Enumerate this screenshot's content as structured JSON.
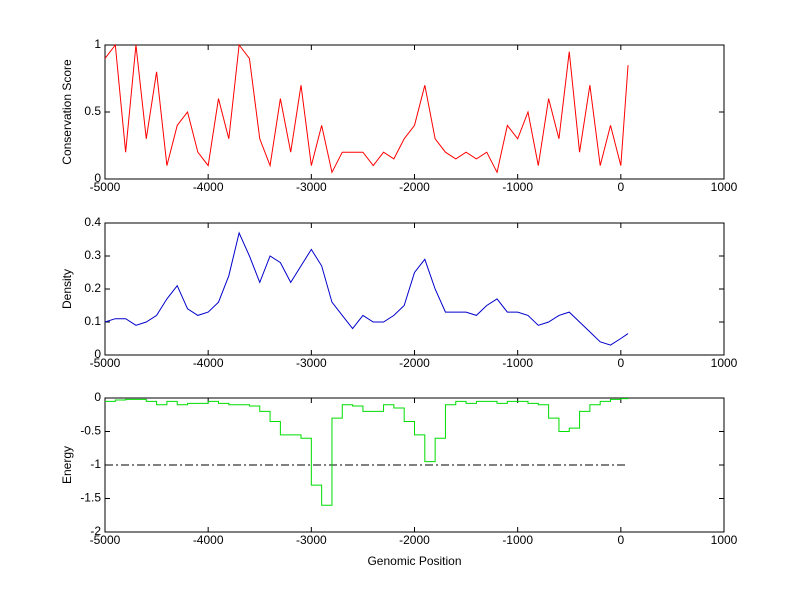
{
  "chart_data": [
    {
      "type": "line",
      "ylabel": "Conservation Score",
      "x": [
        -5000,
        -4900,
        -4800,
        -4700,
        -4600,
        -4500,
        -4400,
        -4300,
        -4200,
        -4100,
        -4000,
        -3900,
        -3800,
        -3700,
        -3600,
        -3500,
        -3400,
        -3300,
        -3200,
        -3100,
        -3000,
        -2900,
        -2800,
        -2700,
        -2600,
        -2500,
        -2400,
        -2300,
        -2200,
        -2100,
        -2000,
        -1900,
        -1800,
        -1700,
        -1600,
        -1500,
        -1400,
        -1300,
        -1200,
        -1100,
        -1000,
        -900,
        -800,
        -700,
        -600,
        -500,
        -400,
        -300,
        -200,
        -100,
        0,
        70
      ],
      "series": [
        {
          "color": "#ff0000",
          "values": [
            0.9,
            1,
            0.2,
            1,
            0.3,
            0.8,
            0.1,
            0.4,
            0.5,
            0.2,
            0.1,
            0.6,
            0.3,
            1,
            0.9,
            0.3,
            0.1,
            0.6,
            0.2,
            0.7,
            0.1,
            0.4,
            0.05,
            0.2,
            0.2,
            0.2,
            0.1,
            0.2,
            0.15,
            0.3,
            0.4,
            0.7,
            0.3,
            0.2,
            0.15,
            0.2,
            0.15,
            0.2,
            0.05,
            0.4,
            0.3,
            0.5,
            0.1,
            0.6,
            0.3,
            0.95,
            0.2,
            0.7,
            0.1,
            0.4,
            0.1,
            0.85
          ]
        }
      ],
      "xlim": [
        -5000,
        1000
      ],
      "xticks": [
        -5000,
        -4000,
        -3000,
        -2000,
        -1000,
        0,
        1000
      ],
      "ylim": [
        0,
        1
      ],
      "yticks": [
        0,
        0.5,
        1
      ]
    },
    {
      "type": "line",
      "ylabel": "Density",
      "x": [
        -5000,
        -4900,
        -4800,
        -4700,
        -4600,
        -4500,
        -4400,
        -4300,
        -4200,
        -4100,
        -4000,
        -3900,
        -3800,
        -3700,
        -3600,
        -3500,
        -3400,
        -3300,
        -3200,
        -3100,
        -3000,
        -2900,
        -2800,
        -2700,
        -2600,
        -2500,
        -2400,
        -2300,
        -2200,
        -2100,
        -2000,
        -1900,
        -1800,
        -1700,
        -1600,
        -1500,
        -1400,
        -1300,
        -1200,
        -1100,
        -1000,
        -900,
        -800,
        -700,
        -600,
        -500,
        -400,
        -300,
        -200,
        -100,
        0,
        70
      ],
      "series": [
        {
          "color": "#0000cc",
          "values": [
            0.1,
            0.11,
            0.11,
            0.09,
            0.1,
            0.12,
            0.17,
            0.21,
            0.14,
            0.12,
            0.13,
            0.16,
            0.24,
            0.37,
            0.3,
            0.22,
            0.3,
            0.28,
            0.22,
            0.27,
            0.32,
            0.27,
            0.16,
            0.12,
            0.08,
            0.12,
            0.1,
            0.1,
            0.12,
            0.15,
            0.25,
            0.29,
            0.2,
            0.13,
            0.13,
            0.13,
            0.12,
            0.15,
            0.17,
            0.13,
            0.13,
            0.12,
            0.09,
            0.1,
            0.12,
            0.13,
            0.1,
            0.07,
            0.04,
            0.03,
            0.05,
            0.065
          ]
        }
      ],
      "xlim": [
        -5000,
        1000
      ],
      "xticks": [
        -5000,
        -4000,
        -3000,
        -2000,
        -1000,
        0,
        1000
      ],
      "ylim": [
        0,
        0.4
      ],
      "yticks": [
        0,
        0.1,
        0.2,
        0.3,
        0.4
      ]
    },
    {
      "type": "step",
      "ylabel": "Energy",
      "xlabel": "Genomic Position",
      "x": [
        -5000,
        -4900,
        -4800,
        -4700,
        -4600,
        -4500,
        -4400,
        -4300,
        -4200,
        -4100,
        -4000,
        -3900,
        -3800,
        -3700,
        -3600,
        -3500,
        -3400,
        -3300,
        -3200,
        -3100,
        -3000,
        -2900,
        -2800,
        -2700,
        -2600,
        -2500,
        -2400,
        -2300,
        -2200,
        -2100,
        -2000,
        -1900,
        -1800,
        -1700,
        -1600,
        -1500,
        -1400,
        -1300,
        -1200,
        -1100,
        -1000,
        -900,
        -800,
        -700,
        -600,
        -500,
        -400,
        -300,
        -200,
        -100,
        0,
        70
      ],
      "series": [
        {
          "color": "#00dd00",
          "values": [
            -0.05,
            -0.03,
            -0.02,
            -0.02,
            -0.05,
            -0.1,
            -0.05,
            -0.1,
            -0.08,
            -0.08,
            -0.05,
            -0.08,
            -0.1,
            -0.1,
            -0.12,
            -0.2,
            -0.35,
            -0.55,
            -0.55,
            -0.6,
            -1.3,
            -1.6,
            -0.3,
            -0.1,
            -0.12,
            -0.2,
            -0.2,
            -0.1,
            -0.15,
            -0.35,
            -0.55,
            -0.95,
            -0.6,
            -0.1,
            -0.05,
            -0.08,
            -0.05,
            -0.05,
            -0.08,
            -0.05,
            -0.05,
            -0.08,
            -0.1,
            -0.3,
            -0.5,
            -0.45,
            -0.2,
            -0.1,
            -0.05,
            -0.02,
            -0.01,
            0
          ]
        }
      ],
      "hline": {
        "y": -1,
        "x": [
          -5000,
          50
        ],
        "color": "#000000"
      },
      "xlim": [
        -5000,
        1000
      ],
      "xticks": [
        -5000,
        -4000,
        -3000,
        -2000,
        -1000,
        0,
        1000
      ],
      "ylim": [
        -2,
        0
      ],
      "yticks": [
        0,
        -0.5,
        -1,
        -1.5,
        -2
      ]
    }
  ]
}
